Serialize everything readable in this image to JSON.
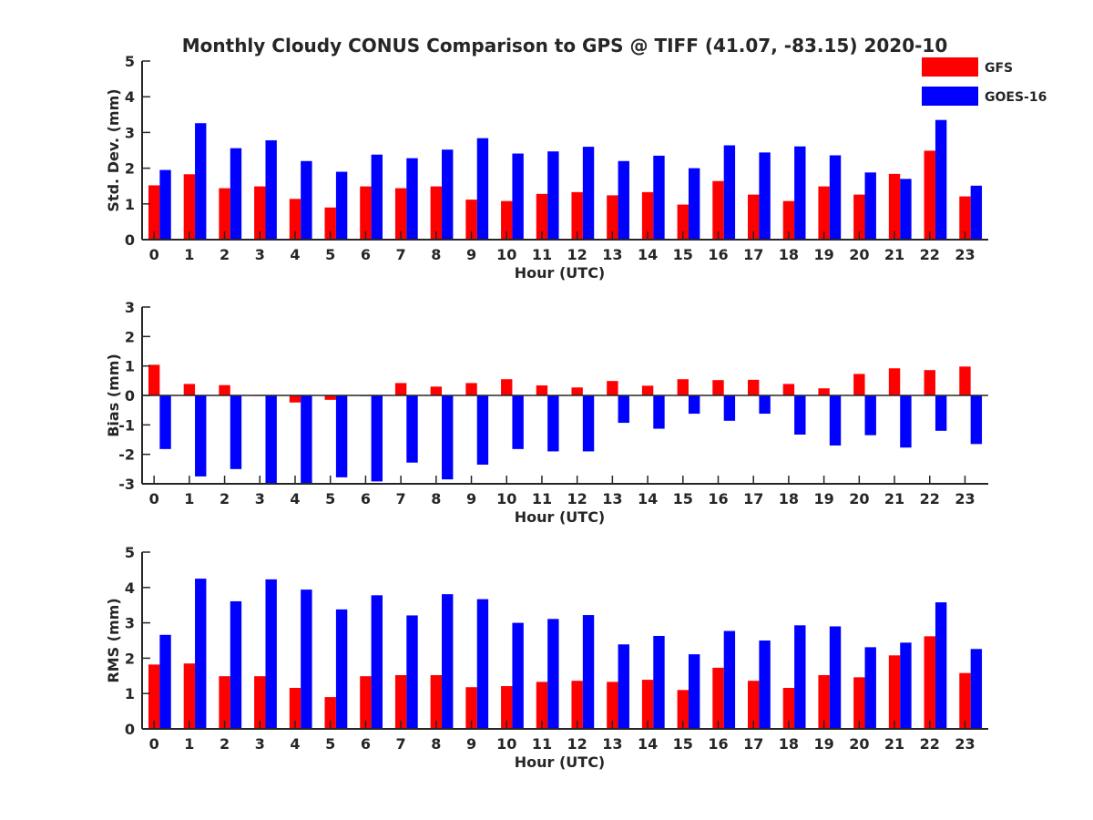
{
  "figure": {
    "title": "Monthly Cloudy CONUS Comparison to GPS @ TIFF (41.07, -83.15) 2020-10",
    "legend": {
      "placement": "top-right",
      "items": [
        {
          "label": "GFS",
          "color": "#ff0000"
        },
        {
          "label": "GOES-16",
          "color": "#0000ff"
        }
      ]
    }
  },
  "chart_data": [
    {
      "type": "bar",
      "ylabel": "Std. Dev. (mm)",
      "xlabel": "Hour (UTC)",
      "ylim": [
        0,
        5
      ],
      "yticks": [
        0,
        1,
        2,
        3,
        4,
        5
      ],
      "categories": [
        "0",
        "1",
        "2",
        "3",
        "4",
        "5",
        "6",
        "7",
        "8",
        "9",
        "10",
        "11",
        "12",
        "13",
        "14",
        "15",
        "16",
        "17",
        "18",
        "19",
        "20",
        "21",
        "22",
        "23"
      ],
      "series": [
        {
          "name": "GFS",
          "color": "#ff0000",
          "values": [
            1.52,
            1.83,
            1.44,
            1.49,
            1.14,
            0.9,
            1.49,
            1.44,
            1.49,
            1.12,
            1.08,
            1.28,
            1.33,
            1.24,
            1.33,
            0.98,
            1.64,
            1.26,
            1.08,
            1.49,
            1.26,
            1.84,
            2.49,
            1.21
          ]
        },
        {
          "name": "GOES-16",
          "color": "#0000ff",
          "values": [
            1.95,
            3.26,
            2.56,
            2.78,
            2.2,
            1.9,
            2.38,
            2.28,
            2.52,
            2.84,
            2.41,
            2.47,
            2.6,
            2.2,
            2.35,
            2.0,
            2.64,
            2.44,
            2.61,
            2.36,
            1.88,
            1.7,
            3.35,
            1.51
          ]
        }
      ]
    },
    {
      "type": "bar",
      "ylabel": "Bias (mm)",
      "xlabel": "Hour (UTC)",
      "ylim": [
        -3,
        3
      ],
      "yticks": [
        -3,
        -2,
        -1,
        0,
        1,
        2,
        3
      ],
      "categories": [
        "0",
        "1",
        "2",
        "3",
        "4",
        "5",
        "6",
        "7",
        "8",
        "9",
        "10",
        "11",
        "12",
        "13",
        "14",
        "15",
        "16",
        "17",
        "18",
        "19",
        "20",
        "21",
        "22",
        "23"
      ],
      "series": [
        {
          "name": "GFS",
          "color": "#ff0000",
          "values": [
            1.04,
            0.39,
            0.35,
            0.02,
            -0.24,
            -0.15,
            0.0,
            0.42,
            0.3,
            0.42,
            0.55,
            0.34,
            0.27,
            0.49,
            0.33,
            0.55,
            0.52,
            0.53,
            0.39,
            0.24,
            0.73,
            0.92,
            0.86,
            0.98
          ]
        },
        {
          "name": "GOES-16",
          "color": "#0000ff",
          "values": [
            -1.82,
            -2.75,
            -2.5,
            -3.0,
            -3.0,
            -2.78,
            -2.92,
            -2.28,
            -2.85,
            -2.35,
            -1.82,
            -1.9,
            -1.9,
            -0.93,
            -1.13,
            -0.62,
            -0.86,
            -0.62,
            -1.33,
            -1.7,
            -1.35,
            -1.77,
            -1.2,
            -1.65
          ]
        }
      ]
    },
    {
      "type": "bar",
      "ylabel": "RMS (mm)",
      "xlabel": "Hour (UTC)",
      "ylim": [
        0,
        5
      ],
      "yticks": [
        0,
        1,
        2,
        3,
        4,
        5
      ],
      "categories": [
        "0",
        "1",
        "2",
        "3",
        "4",
        "5",
        "6",
        "7",
        "8",
        "9",
        "10",
        "11",
        "12",
        "13",
        "14",
        "15",
        "16",
        "17",
        "18",
        "19",
        "20",
        "21",
        "22",
        "23"
      ],
      "series": [
        {
          "name": "GFS",
          "color": "#ff0000",
          "values": [
            1.82,
            1.85,
            1.49,
            1.49,
            1.16,
            0.9,
            1.49,
            1.52,
            1.52,
            1.18,
            1.21,
            1.33,
            1.36,
            1.33,
            1.39,
            1.1,
            1.73,
            1.36,
            1.16,
            1.52,
            1.46,
            2.08,
            2.62,
            1.58
          ]
        },
        {
          "name": "GOES-16",
          "color": "#0000ff",
          "values": [
            2.66,
            4.25,
            3.61,
            4.23,
            3.94,
            3.38,
            3.78,
            3.21,
            3.81,
            3.67,
            3.0,
            3.11,
            3.22,
            2.39,
            2.63,
            2.11,
            2.77,
            2.5,
            2.93,
            2.9,
            2.31,
            2.44,
            3.58,
            2.26
          ]
        }
      ]
    }
  ]
}
